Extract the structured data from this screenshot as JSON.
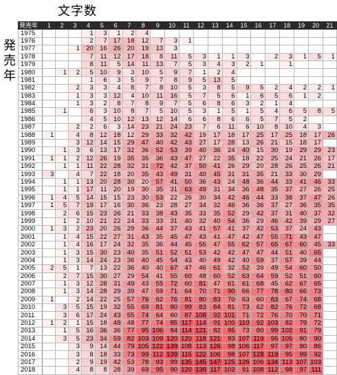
{
  "column_axis_title": "文字数",
  "row_axis_title": [
    "発",
    "売",
    "年"
  ],
  "corner_label": "発売年",
  "columns": [
    "1",
    "2",
    "3",
    "4",
    "5",
    "6",
    "7",
    "8",
    "9",
    "10",
    "11",
    "12",
    "13",
    "14",
    "15",
    "16",
    "17",
    "18",
    "19",
    "20",
    "21"
  ],
  "rows": [
    {
      "year": "1975",
      "cells": [
        "",
        "",
        "",
        "1",
        "3",
        "1",
        "2",
        "4",
        "",
        "",
        "",
        "",
        "",
        "",
        "",
        "",
        "",
        "",
        "",
        "",
        ""
      ]
    },
    {
      "year": "1976",
      "cells": [
        "",
        "",
        "",
        "2",
        "7",
        "17",
        "18",
        "12",
        "7",
        "3",
        "1",
        "",
        "",
        "",
        "",
        "",
        "",
        "",
        "",
        "",
        ""
      ]
    },
    {
      "year": "1977",
      "cells": [
        "",
        "",
        "1",
        "20",
        "16",
        "26",
        "20",
        "19",
        "13",
        "3",
        "",
        "",
        "",
        "",
        "",
        "",
        "",
        "",
        "",
        "",
        ""
      ]
    },
    {
      "year": "1978",
      "cells": [
        "",
        "",
        "",
        "7",
        "11",
        "12",
        "17",
        "18",
        "8",
        "11",
        "5",
        "3",
        "1",
        "1",
        "3",
        "",
        "2",
        "3",
        "1",
        "5",
        "1"
      ]
    },
    {
      "year": "1979",
      "cells": [
        "",
        "",
        "",
        "8",
        "11",
        "5",
        "14",
        "11",
        "13",
        "7",
        "5",
        "3",
        "4",
        "3",
        "2",
        "1",
        "",
        "1",
        "",
        "",
        ""
      ]
    },
    {
      "year": "1980",
      "cells": [
        "",
        "1",
        "2",
        "5",
        "10",
        "9",
        "3",
        "10",
        "5",
        "9",
        "7",
        "1",
        "2",
        "4",
        "",
        "",
        "",
        "",
        "",
        "",
        ""
      ]
    },
    {
      "year": "1981",
      "cells": [
        "",
        "",
        "",
        "1",
        "6",
        "3",
        "5",
        "9",
        "7",
        "8",
        "9",
        "5",
        "13",
        "5",
        "",
        "",
        "",
        "",
        "",
        "",
        ""
      ]
    },
    {
      "year": "1982",
      "cells": [
        "",
        "",
        "2",
        "3",
        "3",
        "4",
        "8",
        "7",
        "8",
        "10",
        "5",
        "3",
        "8",
        "5",
        "9",
        "5",
        "2",
        "4",
        "2",
        "2",
        "1"
      ]
    },
    {
      "year": "1983",
      "cells": [
        "",
        "",
        "1",
        "3",
        "3",
        "12",
        "4",
        "10",
        "11",
        "16",
        "5",
        "7",
        "5",
        "6",
        "1",
        "6",
        "5",
        "6",
        "1",
        "2",
        ""
      ]
    },
    {
      "year": "1984",
      "cells": [
        "",
        "",
        "1",
        "3",
        "2",
        "8",
        "7",
        "8",
        "9",
        "7",
        "5",
        "6",
        "8",
        "6",
        "3",
        "2",
        "1",
        "4",
        "",
        "",
        ""
      ]
    },
    {
      "year": "1985",
      "cells": [
        "",
        "1",
        "",
        "6",
        "3",
        "10",
        "8",
        "7",
        "5",
        "10",
        "5",
        "3",
        "1",
        "5",
        "1",
        "5",
        "4",
        "6",
        "5",
        "8",
        "5"
      ]
    },
    {
      "year": "1986",
      "cells": [
        "",
        "",
        "",
        "4",
        "5",
        "10",
        "12",
        "13",
        "12",
        "14",
        "6",
        "6",
        "8",
        "6",
        "6",
        "5",
        "7",
        "5",
        "2",
        "",
        ""
      ]
    },
    {
      "year": "1987",
      "cells": [
        "",
        "",
        "2",
        "2",
        "6",
        "3",
        "14",
        "23",
        "21",
        "24",
        "23",
        "7",
        "6",
        "11",
        "6",
        "10",
        "8",
        "10",
        "4",
        "3",
        ""
      ]
    },
    {
      "year": "1988",
      "cells": [
        "1",
        "",
        "4",
        "8",
        "12",
        "18",
        "12",
        "29",
        "33",
        "32",
        "42",
        "19",
        "17",
        "18",
        "17",
        "25",
        "17",
        "25",
        "18",
        "17",
        "26"
      ]
    },
    {
      "year": "1989",
      "cells": [
        "",
        "",
        "3",
        "12",
        "14",
        "15",
        "29",
        "47",
        "40",
        "42",
        "43",
        "27",
        "17",
        "28",
        "13",
        "26",
        "21",
        "15",
        "18",
        "17",
        ""
      ]
    },
    {
      "year": "1990",
      "cells": [
        "",
        "1",
        "3",
        "6",
        "13",
        "17",
        "32",
        "36",
        "52",
        "53",
        "39",
        "40",
        "36",
        "24",
        "40",
        "15",
        "30",
        "19",
        "29",
        "29",
        "23"
      ]
    },
    {
      "year": "1991",
      "cells": [
        "1",
        "1",
        "2",
        "12",
        "26",
        "19",
        "35",
        "35",
        "36",
        "43",
        "47",
        "27",
        "22",
        "35",
        "18",
        "22",
        "25",
        "24",
        "21",
        "26",
        "17"
      ]
    },
    {
      "year": "1992",
      "cells": [
        "",
        "1",
        "1",
        "11",
        "22",
        "28",
        "32",
        "31",
        "72",
        "42",
        "37",
        "50",
        "41",
        "26",
        "29",
        "20",
        "28",
        "26",
        "25",
        "26",
        "21"
      ]
    },
    {
      "year": "1993",
      "cells": [
        "3",
        "",
        "4",
        "7",
        "22",
        "18",
        "20",
        "35",
        "43",
        "49",
        "31",
        "40",
        "45",
        "31",
        "31",
        "35",
        "21",
        "33",
        "30",
        "29",
        ""
      ]
    },
    {
      "year": "1994",
      "cells": [
        "",
        "1",
        "1",
        "13",
        "20",
        "28",
        "30",
        "20",
        "57",
        "41",
        "50",
        "36",
        "43",
        "24",
        "48",
        "36",
        "44",
        "33",
        "41",
        "46",
        "33"
      ]
    },
    {
      "year": "1995",
      "cells": [
        "",
        "1",
        "1",
        "17",
        "11",
        "20",
        "19",
        "30",
        "35",
        "31",
        "63",
        "49",
        "31",
        "34",
        "36",
        "48",
        "35",
        "37",
        "27",
        "26",
        "25"
      ]
    },
    {
      "year": "1996",
      "cells": [
        "1",
        "4",
        "5",
        "14",
        "15",
        "15",
        "23",
        "30",
        "53",
        "22",
        "26",
        "30",
        "34",
        "42",
        "46",
        "44",
        "33",
        "38",
        "37",
        "47",
        "26"
      ]
    },
    {
      "year": "1997",
      "cells": [
        "1",
        "5",
        "7",
        "19",
        "17",
        "16",
        "30",
        "36",
        "23",
        "28",
        "27",
        "34",
        "32",
        "46",
        "36",
        "36",
        "37",
        "27",
        "36",
        "35",
        "35"
      ]
    },
    {
      "year": "1998",
      "cells": [
        "",
        "2",
        "6",
        "15",
        "23",
        "26",
        "21",
        "33",
        "38",
        "43",
        "35",
        "33",
        "35",
        "52",
        "29",
        "42",
        "37",
        "31",
        "40",
        "37",
        "32"
      ]
    },
    {
      "year": "1999",
      "cells": [
        "",
        "1",
        "2",
        "10",
        "21",
        "22",
        "24",
        "33",
        "33",
        "31",
        "40",
        "32",
        "40",
        "54",
        "36",
        "29",
        "46",
        "42",
        "39",
        "29",
        "27"
      ]
    },
    {
      "year": "2000",
      "cells": [
        "1",
        "3",
        "2",
        "23",
        "20",
        "26",
        "29",
        "36",
        "44",
        "37",
        "43",
        "41",
        "57",
        "41",
        "37",
        "42",
        "53",
        "37",
        "24",
        "43",
        ""
      ]
    },
    {
      "year": "2001",
      "cells": [
        "",
        "1",
        "4",
        "15",
        "22",
        "27",
        "31",
        "43",
        "35",
        "45",
        "47",
        "43",
        "41",
        "47",
        "42",
        "47",
        "55",
        "71",
        "43",
        "47",
        ""
      ]
    },
    {
      "year": "2002",
      "cells": [
        "",
        "1",
        "4",
        "16",
        "17",
        "24",
        "32",
        "35",
        "36",
        "44",
        "45",
        "55",
        "47",
        "55",
        "62",
        "57",
        "65",
        "67",
        "60",
        "45",
        "33"
      ]
    },
    {
      "year": "2003",
      "cells": [
        "",
        "1",
        "3",
        "15",
        "30",
        "23",
        "40",
        "35",
        "51",
        "52",
        "51",
        "53",
        "42",
        "42",
        "47",
        "47",
        "44",
        "51",
        "40",
        "65",
        ""
      ]
    },
    {
      "year": "2004",
      "cells": [
        "",
        "1",
        "3",
        "14",
        "24",
        "23",
        "36",
        "40",
        "45",
        "54",
        "43",
        "40",
        "49",
        "42",
        "40",
        "59",
        "37",
        "57",
        "39",
        "44",
        ""
      ]
    },
    {
      "year": "2005",
      "cells": [
        "2",
        "5",
        "1",
        "7",
        "13",
        "22",
        "36",
        "40",
        "40",
        "67",
        "47",
        "46",
        "61",
        "32",
        "52",
        "39",
        "49",
        "54",
        "60",
        "50",
        ""
      ]
    },
    {
      "year": "2006",
      "cells": [
        "",
        "2",
        "7",
        "15",
        "30",
        "27",
        "29",
        "54",
        "41",
        "55",
        "60",
        "48",
        "60",
        "52",
        "63",
        "64",
        "59",
        "52",
        "51",
        "60",
        ""
      ]
    },
    {
      "year": "2007",
      "cells": [
        "",
        "1",
        "3",
        "12",
        "28",
        "31",
        "49",
        "43",
        "55",
        "72",
        "60",
        "81",
        "47",
        "61",
        "61",
        "68",
        "45",
        "62",
        "67",
        "65",
        ""
      ]
    },
    {
      "year": "2008",
      "cells": [
        "",
        "1",
        "3",
        "14",
        "28",
        "29",
        "39",
        "47",
        "59",
        "71",
        "64",
        "70",
        "71",
        "90",
        "66",
        "77",
        "78",
        "80",
        "66",
        "73",
        ""
      ]
    },
    {
      "year": "2009",
      "cells": [
        "1",
        "",
        "2",
        "14",
        "22",
        "25",
        "57",
        "76",
        "62",
        "76",
        "81",
        "80",
        "83",
        "70",
        "63",
        "60",
        "83",
        "67",
        "74",
        "68",
        ""
      ]
    },
    {
      "year": "2010",
      "cells": [
        "",
        "3",
        "5",
        "15",
        "19",
        "32",
        "55",
        "69",
        "81",
        "80",
        "99",
        "83",
        "84",
        "81",
        "73",
        "62",
        "82",
        "76",
        "72",
        "68",
        ""
      ]
    },
    {
      "year": "2011",
      "cells": [
        "",
        "3",
        "6",
        "17",
        "24",
        "43",
        "55",
        "74",
        "64",
        "60",
        "87",
        "108",
        "92",
        "101",
        "71",
        "72",
        "76",
        "70",
        "70",
        "71",
        ""
      ]
    },
    {
      "year": "2012",
      "cells": [
        "1",
        "2",
        "1",
        "15",
        "18",
        "48",
        "48",
        "77",
        "74",
        "85",
        "117",
        "114",
        "91",
        "100",
        "110",
        "92",
        "103",
        "82",
        "79",
        "72",
        ""
      ]
    },
    {
      "year": "2013",
      "cells": [
        "",
        "1",
        "5",
        "16",
        "36",
        "36",
        "77",
        "95",
        "106",
        "84",
        "114",
        "121",
        "82",
        "95",
        "73",
        "80",
        "99",
        "102",
        "91",
        "79",
        ""
      ]
    },
    {
      "year": "2014",
      "cells": [
        "",
        "3",
        "5",
        "23",
        "34",
        "59",
        "82",
        "103",
        "109",
        "120",
        "120",
        "118",
        "121",
        "93",
        "107",
        "119",
        "95",
        "105",
        "80",
        "90",
        ""
      ]
    },
    {
      "year": "2015",
      "cells": [
        "",
        "",
        "3",
        "9",
        "14",
        "44",
        "79",
        "105",
        "122",
        "139",
        "108",
        "113",
        "126",
        "98",
        "106",
        "117",
        "97",
        "97",
        "80",
        "86",
        ""
      ]
    },
    {
      "year": "2016",
      "cells": [
        "",
        "",
        "3",
        "8",
        "18",
        "33",
        "73",
        "99",
        "112",
        "139",
        "115",
        "122",
        "106",
        "98",
        "107",
        "128",
        "119",
        "95",
        "99",
        "92",
        ""
      ]
    },
    {
      "year": "2017",
      "cells": [
        "",
        "",
        "2",
        "9",
        "19",
        "42",
        "53",
        "78",
        "93",
        "99",
        "135",
        "145",
        "147",
        "125",
        "126",
        "106",
        "134",
        "113",
        "107",
        "103",
        ""
      ]
    },
    {
      "year": "2018",
      "cells": [
        "",
        "",
        "4",
        "8",
        "8",
        "28",
        "39",
        "69",
        "95",
        "90",
        "120",
        "139",
        "117",
        "102",
        "91",
        "108",
        "112",
        "98",
        "97",
        "111",
        ""
      ]
    }
  ],
  "colors": {
    "header_bg": "#2a2a2a",
    "heat_low": "#ffffff",
    "heat_high": "#e8474d"
  }
}
